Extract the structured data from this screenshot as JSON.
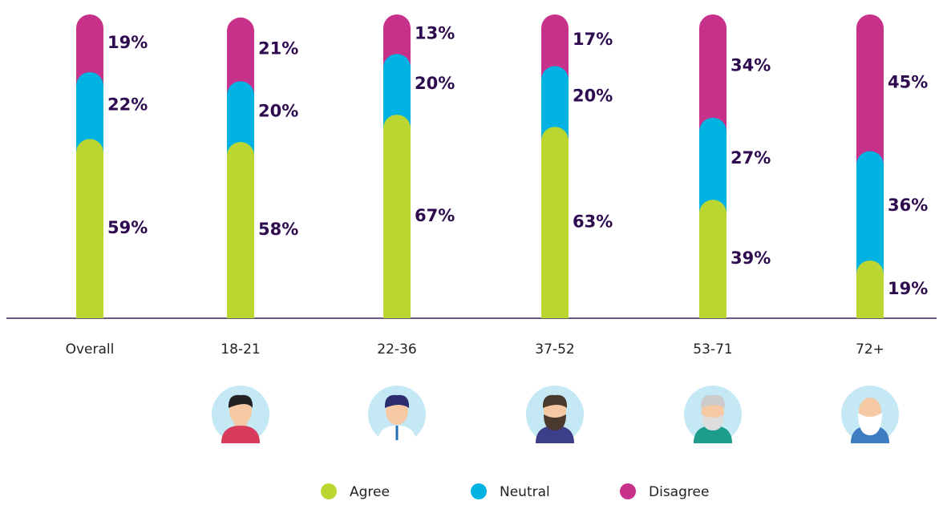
{
  "chart_data": {
    "type": "bar",
    "stacked": true,
    "categories": [
      "Overall",
      "18-21",
      "22-36",
      "37-52",
      "53-71",
      "72+"
    ],
    "series": [
      {
        "name": "Agree",
        "color": "#bcd631",
        "values": [
          59,
          58,
          67,
          63,
          39,
          19
        ],
        "value_labels": [
          "59%",
          "58%",
          "67%",
          "63%",
          "39%",
          "19%"
        ]
      },
      {
        "name": "Neutral",
        "color": "#00b3e3",
        "values": [
          22,
          20,
          20,
          20,
          27,
          36
        ],
        "value_labels": [
          "22%",
          "20%",
          "20%",
          "20%",
          "27%",
          "36%"
        ]
      },
      {
        "name": "Disagree",
        "color": "#c8318a",
        "values": [
          19,
          21,
          13,
          17,
          34,
          45
        ],
        "value_labels": [
          "19%",
          "21%",
          "13%",
          "17%",
          "34%",
          "45%"
        ]
      }
    ],
    "ylim": [
      0,
      100
    ]
  }
}
